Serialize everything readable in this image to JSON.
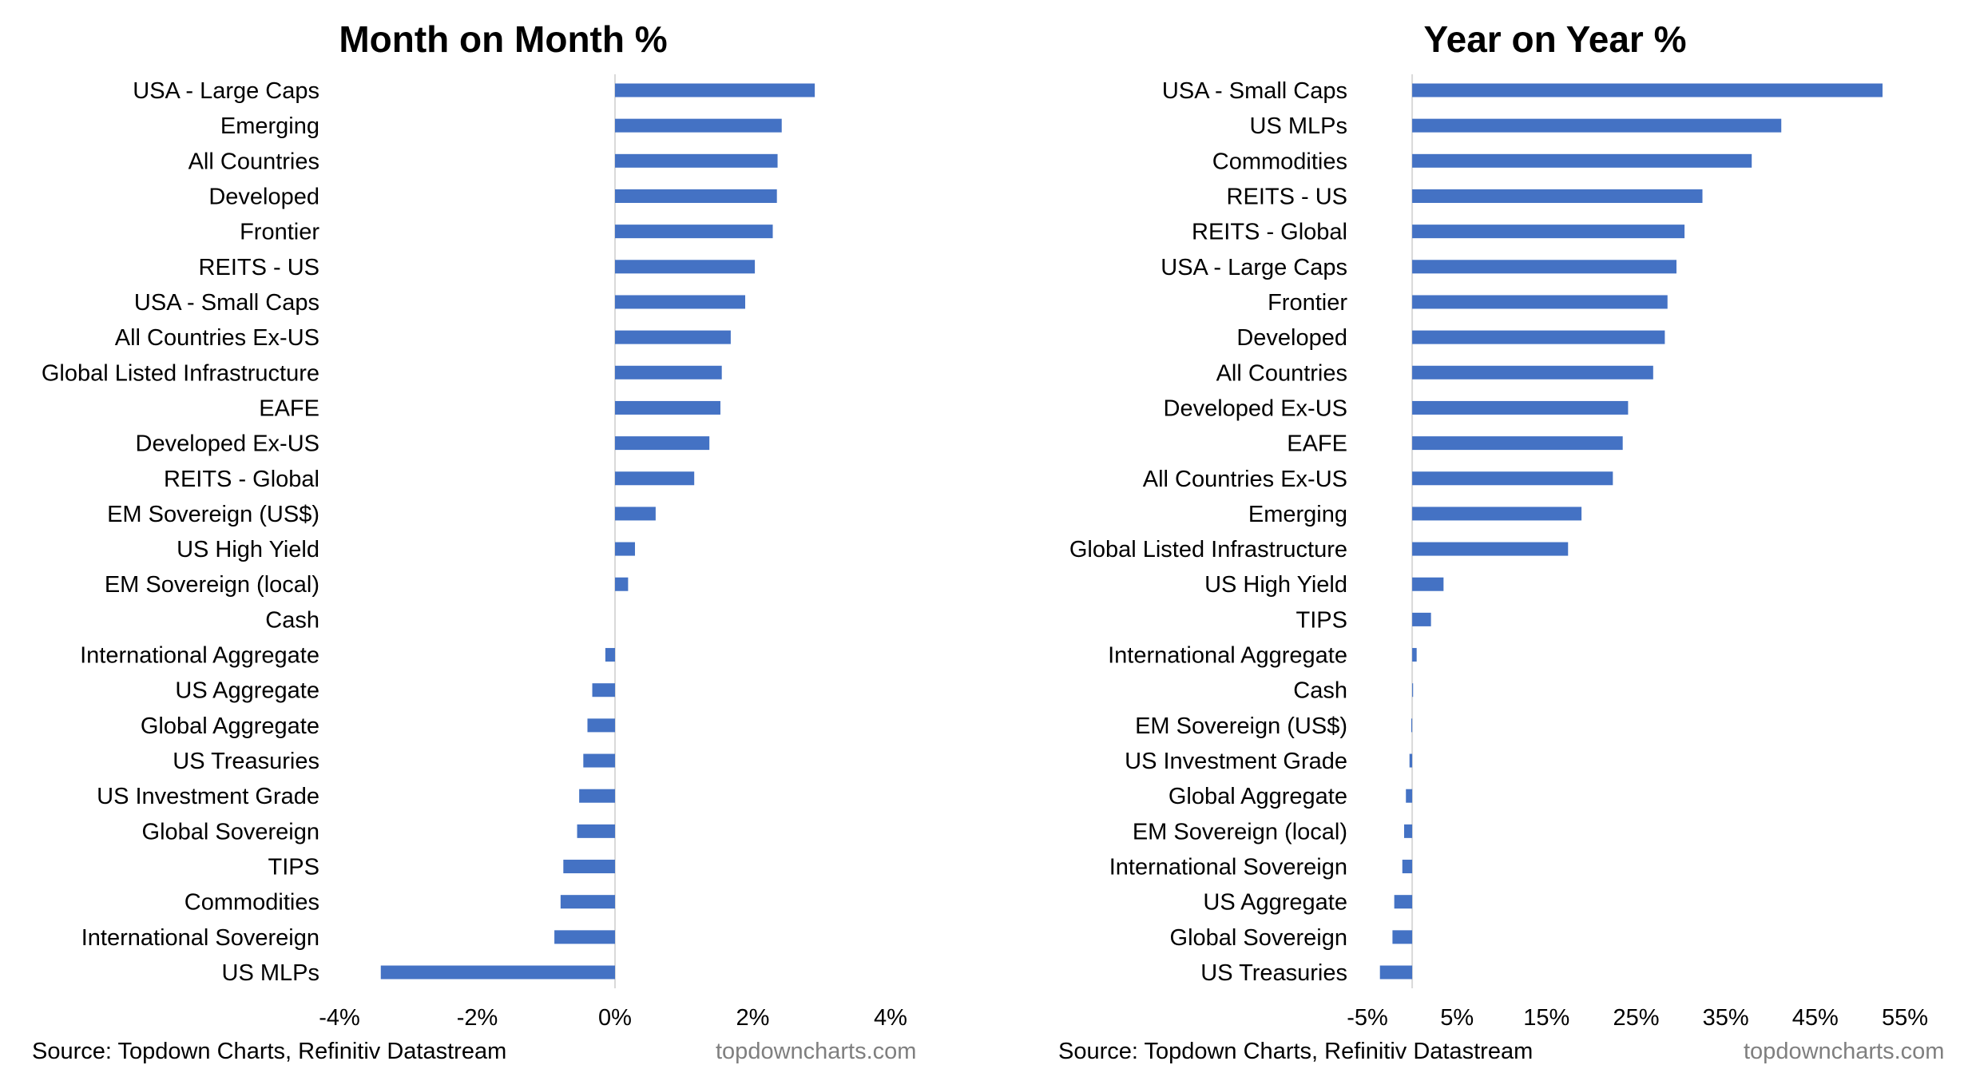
{
  "chart_data": [
    {
      "type": "bar",
      "orientation": "horizontal",
      "title": "Month on Month %",
      "categories": [
        "USA - Large Caps",
        "Emerging",
        "All Countries",
        "Developed",
        "Frontier",
        "REITS - US",
        "USA - Small Caps",
        "All Countries Ex-US",
        "Global Listed Infrastructure",
        "EAFE",
        "Developed Ex-US",
        "REITS - Global",
        "EM Sovereign (US$)",
        "US High Yield",
        "EM Sovereign (local)",
        "Cash",
        "International Aggregate",
        "US Aggregate",
        "Global Aggregate",
        "US Treasuries",
        "US Investment Grade",
        "Global Sovereign",
        "TIPS",
        "Commodities",
        "International Sovereign",
        "US MLPs"
      ],
      "values": [
        2.9,
        2.42,
        2.36,
        2.35,
        2.29,
        2.03,
        1.89,
        1.68,
        1.55,
        1.53,
        1.37,
        1.15,
        0.59,
        0.29,
        0.19,
        0.0,
        -0.14,
        -0.33,
        -0.4,
        -0.46,
        -0.52,
        -0.55,
        -0.75,
        -0.79,
        -0.88,
        -3.4
      ],
      "xlim": [
        -4,
        4
      ],
      "xticks": [
        -4,
        -2,
        0,
        2,
        4
      ],
      "xtick_labels": [
        "-4%",
        "-2%",
        "0%",
        "2%",
        "4%"
      ],
      "bar_color": "#4472c4",
      "grid": false
    },
    {
      "type": "bar",
      "orientation": "horizontal",
      "title": "Year on Year %",
      "categories": [
        "USA - Small Caps",
        "US MLPs",
        "Commodities",
        "REITS - US",
        "REITS - Global",
        "USA - Large Caps",
        "Frontier",
        "Developed",
        "All Countries",
        "Developed Ex-US",
        "EAFE",
        "All Countries Ex-US",
        "Emerging",
        "Global Listed Infrastructure",
        "US High Yield",
        "TIPS",
        "International Aggregate",
        "Cash",
        "EM Sovereign (US$)",
        "US Investment Grade",
        "Global Aggregate",
        "EM Sovereign (local)",
        "International Sovereign",
        "US Aggregate",
        "Global Sovereign",
        "US Treasuries"
      ],
      "values": [
        52.5,
        41.2,
        37.9,
        32.4,
        30.4,
        29.5,
        28.5,
        28.2,
        26.9,
        24.1,
        23.5,
        22.4,
        18.9,
        17.4,
        3.5,
        2.1,
        0.5,
        0.1,
        -0.1,
        -0.3,
        -0.7,
        -0.9,
        -1.1,
        -2.0,
        -2.2,
        -3.6
      ],
      "xlim": [
        -5,
        55
      ],
      "xticks": [
        -5,
        5,
        15,
        25,
        35,
        45,
        55
      ],
      "xtick_labels": [
        "-5%",
        "5%",
        "15%",
        "25%",
        "35%",
        "45%",
        "55%"
      ],
      "bar_color": "#4472c4",
      "grid": false
    }
  ],
  "footer": {
    "source": "Source: Topdown Charts, Refinitiv Datastream",
    "watermark": "topdowncharts.com"
  }
}
